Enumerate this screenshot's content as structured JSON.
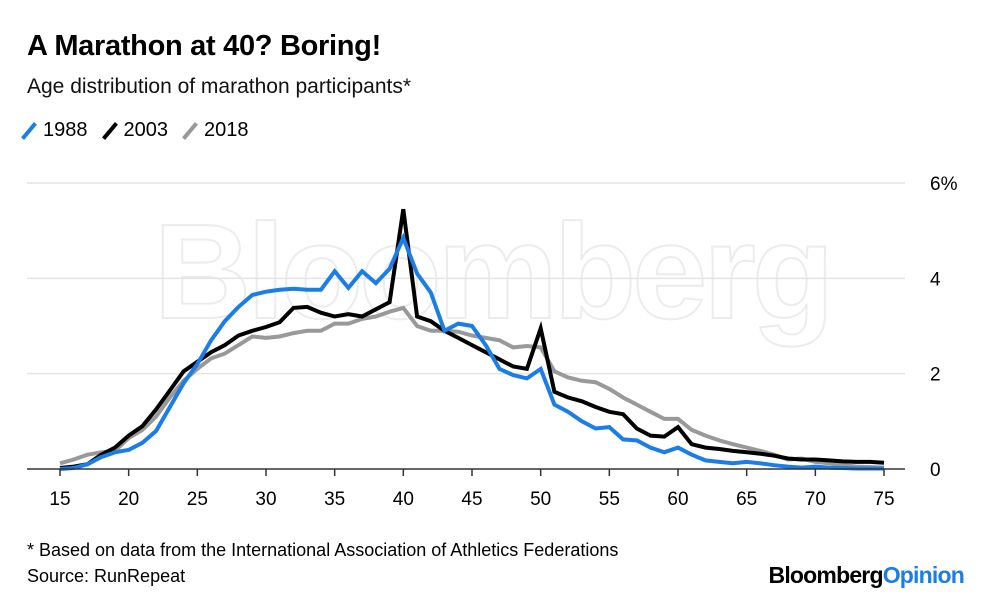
{
  "title": "A Marathon at 40? Boring!",
  "subtitle": "Age distribution of marathon participants*",
  "footnote": "* Based on data from the International Association of Athletics Federations",
  "source": "Source: RunRepeat",
  "logo": {
    "brand": "Bloomberg",
    "suffix": "Opinion"
  },
  "watermark": "Bloomberg",
  "chart_data": {
    "type": "line",
    "title": "A Marathon at 40? Boring!",
    "subtitle": "Age distribution of marathon participants*",
    "xlim": [
      15,
      75
    ],
    "ylim": [
      0,
      6
    ],
    "xticks": [
      15,
      20,
      25,
      30,
      35,
      40,
      45,
      50,
      55,
      60,
      65,
      70,
      75
    ],
    "yticks": [
      {
        "v": 0,
        "label": "0"
      },
      {
        "v": 2,
        "label": "2"
      },
      {
        "v": 4,
        "label": "4"
      },
      {
        "v": 6,
        "label": "6%"
      }
    ],
    "grid": true,
    "legend_position": "top-left",
    "x": [
      15,
      16,
      17,
      18,
      19,
      20,
      21,
      22,
      23,
      24,
      25,
      26,
      27,
      28,
      29,
      30,
      31,
      32,
      33,
      34,
      35,
      36,
      37,
      38,
      39,
      40,
      41,
      42,
      43,
      44,
      45,
      46,
      47,
      48,
      49,
      50,
      51,
      52,
      53,
      54,
      55,
      56,
      57,
      58,
      59,
      60,
      61,
      62,
      63,
      64,
      65,
      66,
      67,
      68,
      69,
      70,
      71,
      72,
      73,
      74,
      75
    ],
    "series": [
      {
        "name": "1988",
        "color": "#1a7de8",
        "values": [
          0,
          0.02,
          0.1,
          0.25,
          0.35,
          0.4,
          0.55,
          0.8,
          1.3,
          1.8,
          2.2,
          2.7,
          3.1,
          3.4,
          3.65,
          3.72,
          3.76,
          3.78,
          3.76,
          3.76,
          4.15,
          3.8,
          4.15,
          3.9,
          4.2,
          4.85,
          4.1,
          3.7,
          2.9,
          3.05,
          3.0,
          2.6,
          2.1,
          1.97,
          1.9,
          2.1,
          1.35,
          1.2,
          1.0,
          0.85,
          0.88,
          0.62,
          0.6,
          0.45,
          0.35,
          0.45,
          0.3,
          0.18,
          0.15,
          0.12,
          0.15,
          0.12,
          0.08,
          0.05,
          0.03,
          0.05,
          0.03,
          0.02,
          0.01,
          0.01,
          0.01
        ]
      },
      {
        "name": "2003",
        "color": "#000000",
        "values": [
          0.02,
          0.05,
          0.1,
          0.3,
          0.45,
          0.7,
          0.9,
          1.25,
          1.65,
          2.05,
          2.25,
          2.45,
          2.6,
          2.8,
          2.9,
          2.98,
          3.08,
          3.38,
          3.4,
          3.28,
          3.2,
          3.25,
          3.2,
          3.35,
          3.5,
          5.45,
          3.2,
          3.1,
          2.9,
          2.75,
          2.6,
          2.45,
          2.3,
          2.15,
          2.1,
          2.95,
          1.62,
          1.5,
          1.42,
          1.3,
          1.2,
          1.15,
          0.85,
          0.7,
          0.68,
          0.88,
          0.52,
          0.45,
          0.42,
          0.38,
          0.35,
          0.32,
          0.28,
          0.22,
          0.2,
          0.2,
          0.18,
          0.16,
          0.15,
          0.15,
          0.13
        ]
      },
      {
        "name": "2018",
        "color": "#999999",
        "values": [
          0.12,
          0.2,
          0.3,
          0.35,
          0.38,
          0.65,
          0.82,
          1.1,
          1.5,
          1.85,
          2.1,
          2.32,
          2.42,
          2.6,
          2.78,
          2.75,
          2.78,
          2.85,
          2.9,
          2.9,
          3.05,
          3.05,
          3.15,
          3.2,
          3.3,
          3.38,
          3.0,
          2.9,
          2.9,
          2.88,
          2.8,
          2.75,
          2.7,
          2.55,
          2.58,
          2.55,
          2.05,
          1.92,
          1.85,
          1.82,
          1.68,
          1.5,
          1.35,
          1.2,
          1.05,
          1.05,
          0.82,
          0.7,
          0.6,
          0.52,
          0.45,
          0.38,
          0.3,
          0.2,
          0.22,
          0.15,
          0.12,
          0.08,
          0.05,
          0.04,
          0.03
        ]
      }
    ]
  }
}
